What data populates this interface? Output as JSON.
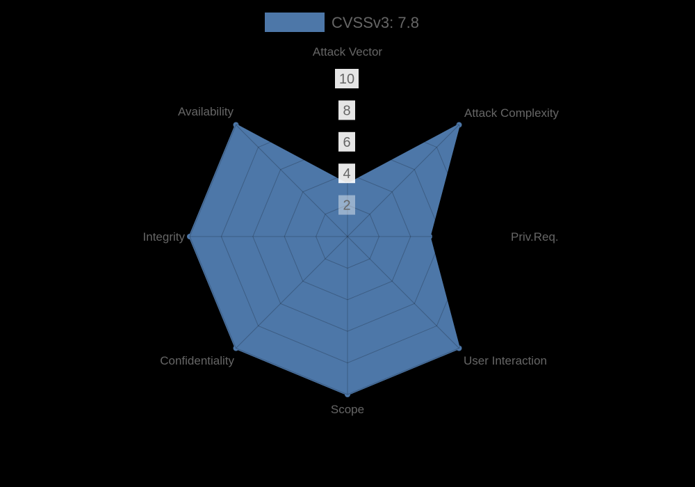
{
  "legend": {
    "label": "CVSSv3: 7.8"
  },
  "chart_data": {
    "type": "radar",
    "title": "",
    "categories": [
      "Attack Vector",
      "Attack Complexity",
      "Priv.Req.",
      "User Interaction",
      "Scope",
      "Confidentiality",
      "Integrity",
      "Availability"
    ],
    "series": [
      {
        "name": "CVSSv3: 7.8",
        "values": [
          3.3,
          10,
          5.2,
          10,
          10,
          10,
          10,
          10
        ]
      }
    ],
    "rlim": [
      0,
      10
    ],
    "ticks": [
      2,
      4,
      6,
      8,
      10
    ],
    "grid": true,
    "legend_position": "top",
    "colors": {
      "series_fill": "#4d77a8",
      "series_border": "#4d77a8",
      "grid_line": "rgba(0,0,0,0.22)",
      "text": "#666666",
      "tick_backdrop": "#ffffff",
      "background": "#000000"
    }
  }
}
